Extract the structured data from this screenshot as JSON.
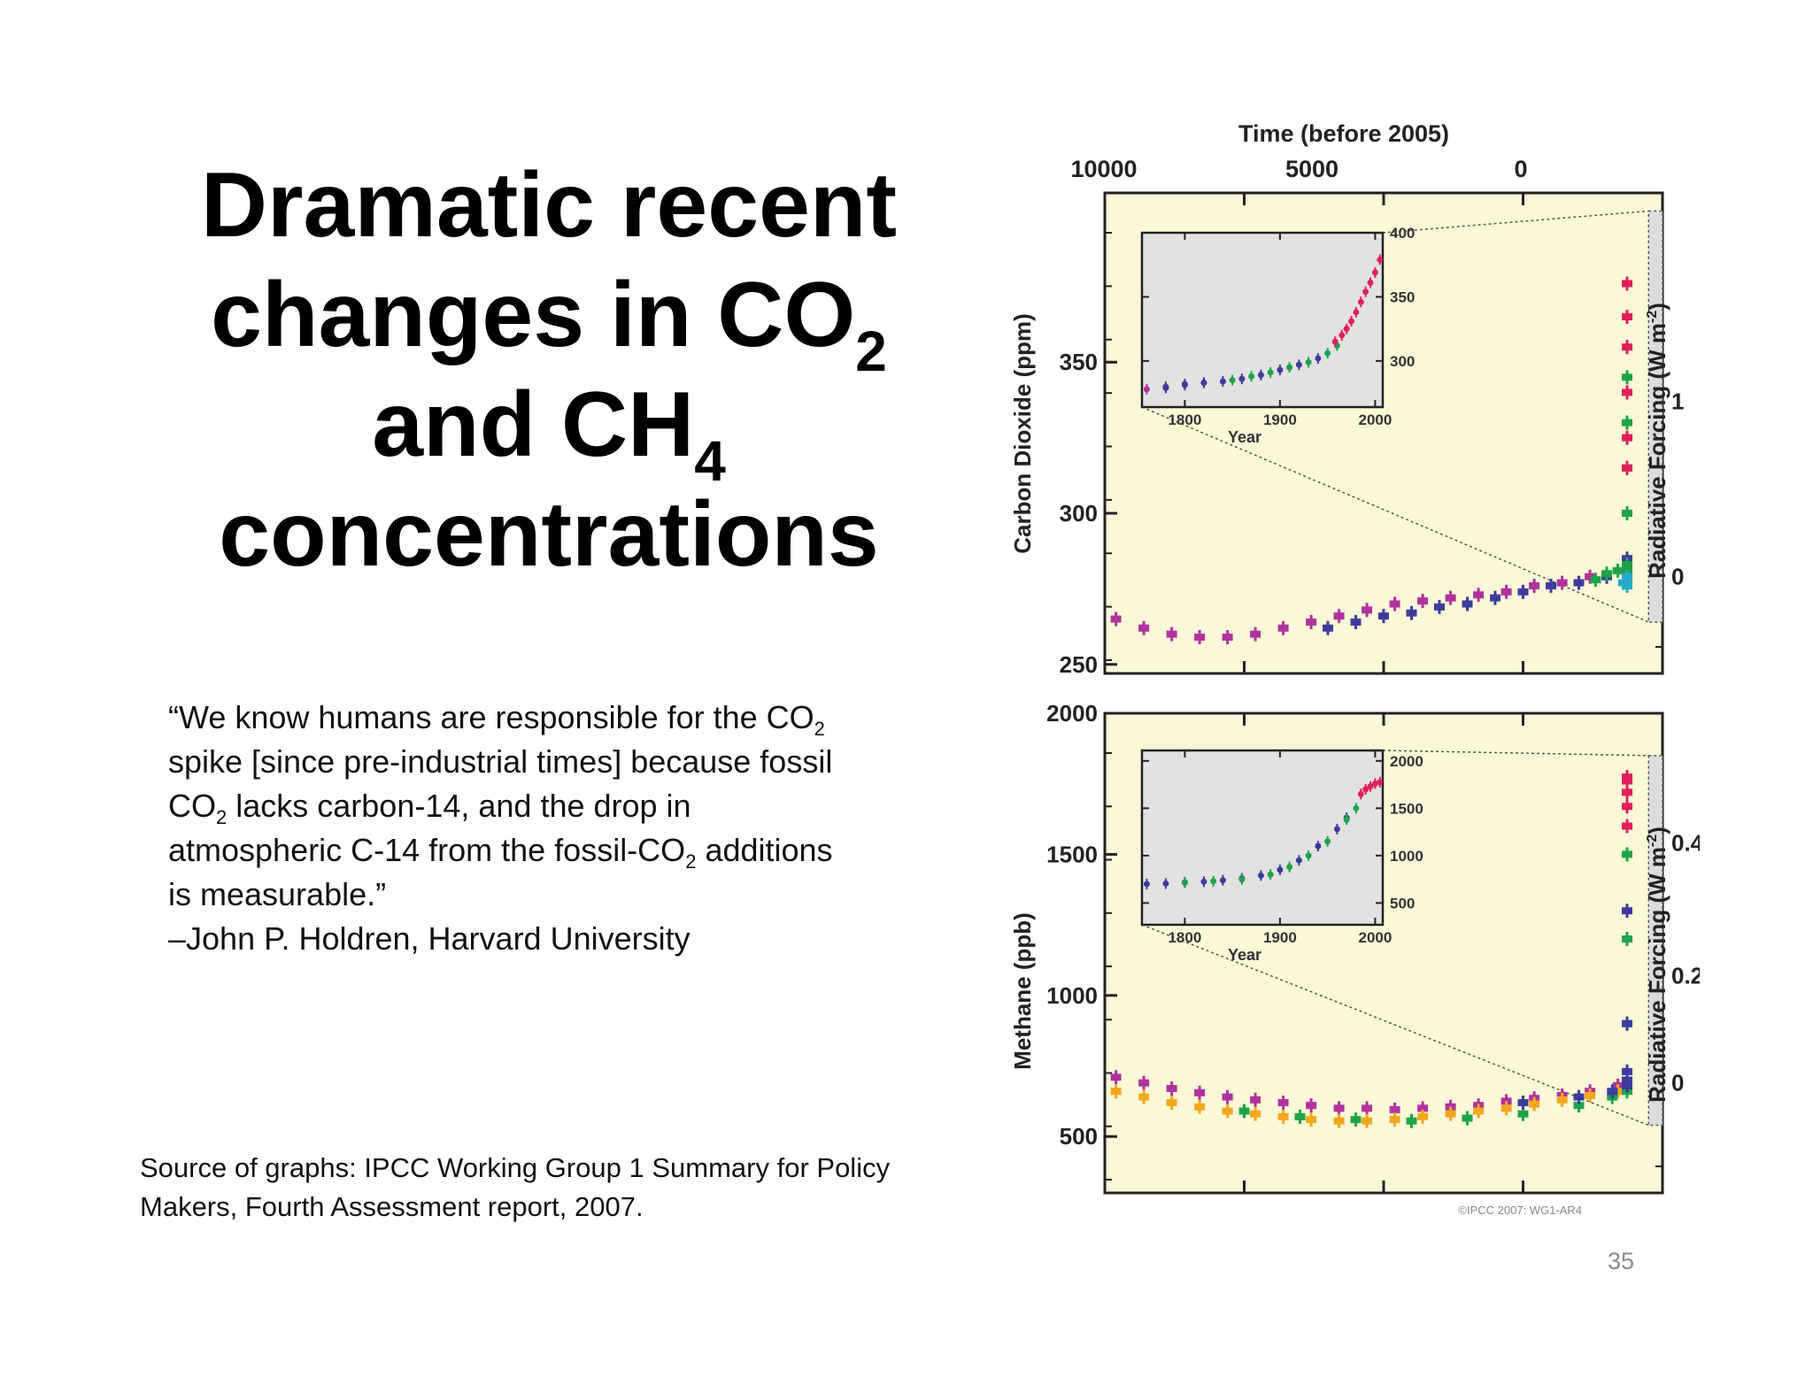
{
  "slide": {
    "title": {
      "line1": "Dramatic recent",
      "line2_main": "changes in CO",
      "line2_sub": "2",
      "line3_main": "and CH",
      "line3_sub": "4",
      "line4": "concentrations"
    },
    "quote": {
      "l1_a": "“We know humans are responsible for the CO",
      "l1_sub": "2",
      "l2": "spike [since pre-industrial times] because fossil",
      "l3_a": "CO",
      "l3_sub": "2",
      "l3_b": " lacks carbon-14, and the  drop in",
      "l4_a": "atmospheric C-14 from the fossil-CO",
      "l4_sub": "2",
      "l4_b": " additions",
      "l5": "is measurable.”",
      "attribution": "–John P. Holdren, Harvard University"
    },
    "source": {
      "line1": "Source of graphs:  IPCC Working Group 1 Summary for Policy",
      "line2": "Makers, Fourth Assessment report, 2007."
    },
    "page_number": "35"
  },
  "figure": {
    "top_axis_label": "Time (before 2005)",
    "top_ticks": [
      "10000",
      "5000",
      "0"
    ],
    "copyright": "©IPCC 2007: WG1-AR4",
    "colors": {
      "panel_bg": "#fbf8d8",
      "inset_bg": "#e2e2e2",
      "magenta": "#b0329c",
      "navy": "#3c3c9c",
      "green": "#1ea34a",
      "red": "#e0205a",
      "cyan": "#25a8c9",
      "orange": "#f2a81e"
    }
  },
  "chart_data": [
    {
      "type": "scatter",
      "ylabel": "Carbon Dioxide (ppm)",
      "y2label_main": "Radiative Forcing (W m",
      "y2label_sup": "-2",
      "y2label_end": ")",
      "x_label": "Time (before 2005)",
      "x_ticks": [
        "10000",
        "5000",
        "0"
      ],
      "xlim": [
        10000,
        0
      ],
      "ylim": [
        247,
        406
      ],
      "y_ticks": [
        "250",
        "300",
        "350"
      ],
      "y_tick_values": [
        250,
        300,
        350
      ],
      "y2_ticks": [
        "0",
        "1"
      ],
      "y2_tick_ppm": [
        279,
        337
      ],
      "series": [
        {
          "color": "magenta",
          "x": [
            9800,
            9300,
            8800,
            8300,
            7800,
            7300,
            6800,
            6300,
            5800,
            5300,
            4800,
            4300,
            3800,
            3300,
            2800,
            2300,
            1800,
            1300
          ],
          "y": [
            265,
            262,
            260,
            259,
            259,
            260,
            262,
            264,
            266,
            268,
            270,
            271,
            272,
            273,
            274,
            276,
            277,
            279
          ]
        },
        {
          "color": "navy",
          "x": [
            6000,
            5500,
            5000,
            4500,
            4000,
            3500,
            3000,
            2500,
            2000,
            1500,
            1000,
            700,
            400,
            200,
            150,
            100
          ],
          "y": [
            262,
            264,
            266,
            267,
            269,
            270,
            272,
            274,
            276,
            277,
            279,
            281,
            281,
            283,
            285,
            300
          ]
        },
        {
          "color": "green",
          "x": [
            1200,
            1000,
            800,
            600,
            400,
            300,
            200,
            100,
            60,
            40,
            20,
            10
          ],
          "y": [
            278,
            280,
            281,
            282,
            281,
            280,
            279,
            283,
            300,
            315,
            330,
            345
          ]
        },
        {
          "color": "cyan",
          "x": [
            700,
            500,
            300,
            150
          ],
          "y": [
            277,
            279,
            278,
            276
          ]
        },
        {
          "color": "red",
          "x": [
            50,
            35,
            25,
            15,
            8,
            0
          ],
          "y": [
            315,
            325,
            340,
            355,
            365,
            376
          ]
        }
      ],
      "zoom_window": {
        "x_start": 250,
        "x_end": 0,
        "y_low": 264,
        "y_high": 400
      },
      "inset": {
        "x_label": "Year",
        "x_ticks": [
          "1800",
          "1900",
          "2000"
        ],
        "x_tick_values": [
          1800,
          1900,
          2000
        ],
        "y_ticks": [
          "400",
          "350",
          "300"
        ],
        "y_tick_values": [
          400,
          350,
          300
        ],
        "xlim": [
          1755,
          2008
        ],
        "ylim": [
          264,
          400
        ],
        "series": [
          {
            "color": "magenta",
            "x": [
              1760,
              1780,
              1800,
              1820
            ],
            "y": [
              278,
              280,
              281,
              283
            ]
          },
          {
            "color": "navy",
            "x": [
              1780,
              1800,
              1820,
              1840,
              1860,
              1880,
              1900,
              1920,
              1940
            ],
            "y": [
              279,
              282,
              283,
              284,
              286,
              289,
              293,
              297,
              302
            ]
          },
          {
            "color": "green",
            "x": [
              1850,
              1870,
              1890,
              1910,
              1930,
              1950,
              1960
            ],
            "y": [
              285,
              288,
              291,
              295,
              299,
              306,
              312
            ]
          },
          {
            "color": "red",
            "x": [
              1958,
              1965,
              1970,
              1975,
              1980,
              1985,
              1990,
              1995,
              2000,
              2005
            ],
            "y": [
              315,
              320,
              325,
              331,
              338,
              346,
              354,
              361,
              369,
              379
            ]
          }
        ]
      }
    },
    {
      "type": "scatter",
      "ylabel": "Methane (ppb)",
      "y2label_main": "Radiative Forcing (W m",
      "y2label_sup": "-2",
      "y2label_end": ")",
      "xlim": [
        10000,
        0
      ],
      "ylim": [
        300,
        2000
      ],
      "y_ticks": [
        "2000",
        "1500",
        "1000",
        "500"
      ],
      "y_tick_values": [
        2000,
        1500,
        1000,
        500
      ],
      "y2_ticks": [
        "0.4",
        "0.2",
        "0"
      ],
      "y2_tick_ppb": [
        1540,
        1070,
        690
      ],
      "series": [
        {
          "color": "magenta",
          "x": [
            9800,
            9300,
            8800,
            8300,
            7800,
            7300,
            6800,
            6300,
            5800,
            5300,
            4800,
            4300,
            3800,
            3300,
            2800,
            2300,
            1800,
            1300,
            800
          ],
          "y": [
            710,
            690,
            670,
            655,
            640,
            630,
            620,
            610,
            600,
            600,
            595,
            600,
            605,
            610,
            625,
            635,
            645,
            660,
            680
          ]
        },
        {
          "color": "orange",
          "x": [
            9800,
            9300,
            8800,
            8300,
            7800,
            7300,
            6800,
            6300,
            5800,
            5300,
            4800,
            4300,
            3800,
            3300,
            2800,
            2300,
            1800,
            1300,
            800,
            400
          ],
          "y": [
            660,
            640,
            620,
            605,
            590,
            580,
            570,
            560,
            555,
            555,
            560,
            570,
            580,
            590,
            600,
            615,
            630,
            645,
            660,
            680
          ]
        },
        {
          "color": "green",
          "x": [
            7500,
            6500,
            5500,
            4500,
            3500,
            2500,
            1500,
            900,
            500,
            300,
            150,
            80,
            30
          ],
          "y": [
            590,
            570,
            560,
            555,
            565,
            580,
            610,
            640,
            660,
            700,
            900,
            1200,
            1500
          ]
        },
        {
          "color": "navy",
          "x": [
            2500,
            1500,
            900,
            500,
            300,
            200,
            100,
            40,
            20
          ],
          "y": [
            620,
            640,
            660,
            680,
            700,
            730,
            900,
            1300,
            1600
          ]
        },
        {
          "color": "red",
          "x": [
            40,
            25,
            15,
            5,
            0
          ],
          "y": [
            1600,
            1670,
            1720,
            1760,
            1774
          ]
        }
      ],
      "zoom_window": {
        "x_start": 250,
        "x_end": 0,
        "y_low": 540,
        "y_high": 1850
      },
      "inset": {
        "x_label": "Year",
        "x_ticks": [
          "1800",
          "1900",
          "2000"
        ],
        "x_tick_values": [
          1800,
          1900,
          2000
        ],
        "y_ticks": [
          "2000",
          "1500",
          "1000",
          "500"
        ],
        "y_tick_values": [
          2000,
          1500,
          1000,
          500
        ],
        "xlim": [
          1755,
          2008
        ],
        "ylim": [
          270,
          2110
        ],
        "series": [
          {
            "color": "navy",
            "x": [
              1760,
              1780,
              1800,
              1820,
              1840,
              1860,
              1880,
              1900,
              1920,
              1940,
              1960,
              1970
            ],
            "y": [
              700,
              705,
              715,
              725,
              740,
              760,
              790,
              850,
              950,
              1100,
              1280,
              1400
            ]
          },
          {
            "color": "green",
            "x": [
              1800,
              1830,
              1860,
              1890,
              1910,
              1930,
              1950,
              1970,
              1980
            ],
            "y": [
              720,
              730,
              750,
              800,
              880,
              1000,
              1150,
              1380,
              1500
            ]
          },
          {
            "color": "red",
            "x": [
              1985,
              1990,
              1995,
              2000,
              2005
            ],
            "y": [
              1650,
              1700,
              1730,
              1760,
              1775
            ]
          }
        ]
      }
    }
  ]
}
